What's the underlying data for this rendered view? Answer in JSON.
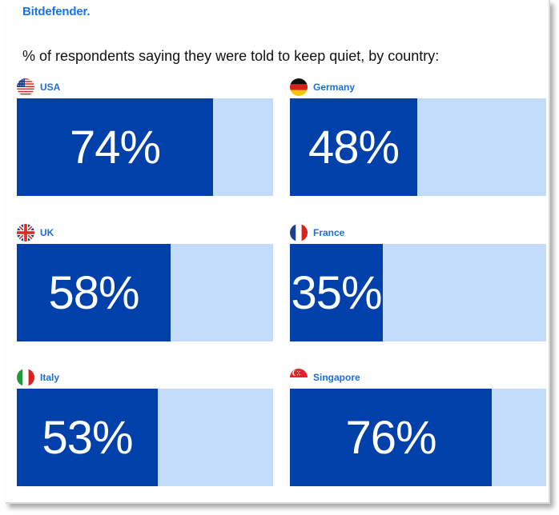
{
  "brand": "Bitdefender.",
  "colors": {
    "brand": "#1a73e8",
    "label": "#1a6fdc",
    "bar_fill": "#0040aa",
    "bar_track": "#c4dcfc"
  },
  "chart_data": {
    "type": "bar",
    "title": "% of respondents saying they were told to keep quiet, by country:",
    "unit": "%",
    "ylim": [
      0,
      100
    ],
    "categories": [
      "USA",
      "Germany",
      "UK",
      "France",
      "Italy",
      "Singapore"
    ],
    "values": [
      74,
      48,
      58,
      35,
      53,
      76
    ],
    "value_labels": [
      "74%",
      "48%",
      "58%",
      "35%",
      "53%",
      "76%"
    ],
    "flags": [
      "us-flag-icon",
      "germany-flag-icon",
      "uk-flag-icon",
      "france-flag-icon",
      "italy-flag-icon",
      "singapore-flag-icon"
    ]
  }
}
